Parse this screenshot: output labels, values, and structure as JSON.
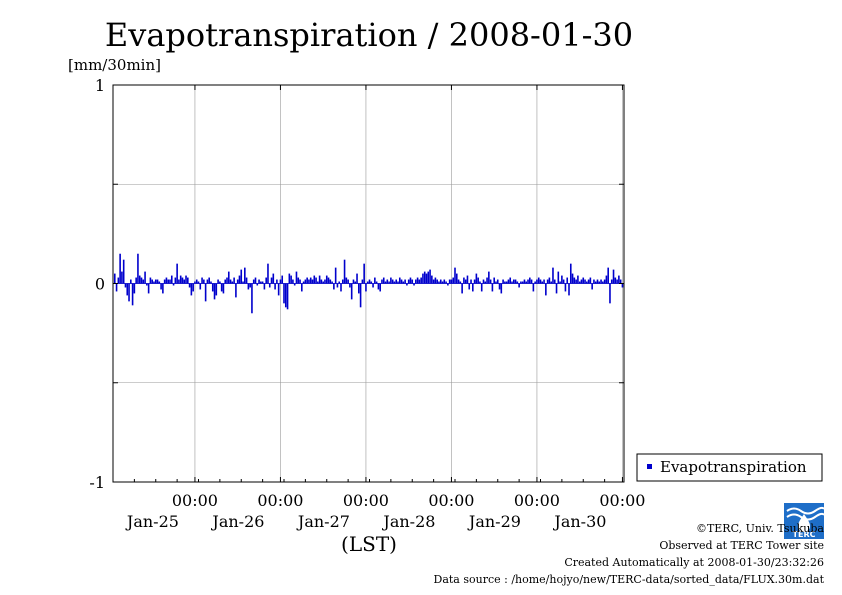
{
  "chart_data": {
    "type": "bar",
    "title": "Evapotranspiration / 2008-01-30",
    "ylabel": "[mm/30min]",
    "xlabel": "(LST)",
    "ylim": [
      -1,
      1
    ],
    "yticks": [
      "1",
      "0",
      "-1"
    ],
    "xticks": [
      {
        "time": "00:00",
        "date": "Jan-25"
      },
      {
        "time": "00:00",
        "date": "Jan-26"
      },
      {
        "time": "00:00",
        "date": "Jan-27"
      },
      {
        "time": "00:00",
        "date": "Jan-28"
      },
      {
        "time": "00:00",
        "date": "Jan-29"
      },
      {
        "time": "00:00",
        "date": "Jan-30"
      }
    ],
    "grid": true,
    "legend": {
      "entries": [
        "Evapotranspiration"
      ],
      "placement": "right"
    },
    "color": "#0000cc",
    "series": [
      {
        "name": "Evapotranspiration",
        "x_start": "2008-01-24 01:30",
        "x_step_minutes": 30,
        "values": [
          0.05,
          -0.04,
          0.03,
          0.15,
          0.06,
          0.12,
          -0.02,
          -0.06,
          -0.09,
          0.02,
          -0.11,
          -0.05,
          0.03,
          0.15,
          0.04,
          0.03,
          0.02,
          0.06,
          -0.01,
          -0.05,
          0.03,
          0.02,
          0.01,
          0.02,
          0.02,
          0.01,
          -0.03,
          -0.05,
          0.02,
          0.03,
          0.02,
          0.02,
          0.04,
          -0.01,
          0.03,
          0.1,
          0.02,
          0.04,
          0.03,
          0.02,
          0.04,
          0.03,
          -0.02,
          -0.06,
          -0.04,
          0.01,
          0.02,
          0.01,
          -0.03,
          0.03,
          0.02,
          -0.09,
          0.02,
          0.03,
          0.01,
          -0.04,
          -0.08,
          -0.06,
          0.02,
          0.01,
          -0.04,
          -0.05,
          0.02,
          0.03,
          0.06,
          0.02,
          0.01,
          0.03,
          -0.07,
          0.02,
          0.04,
          0.07,
          0.01,
          0.08,
          0.03,
          -0.03,
          -0.02,
          -0.15,
          0.02,
          0.03,
          -0.01,
          0.02,
          0.01,
          0.01,
          -0.03,
          0.03,
          0.1,
          -0.02,
          0.03,
          0.05,
          -0.03,
          0.02,
          -0.06,
          0.02,
          0.04,
          -0.1,
          -0.12,
          -0.13,
          0.05,
          0.04,
          0.02,
          -0.01,
          0.06,
          0.03,
          0.02,
          -0.04,
          0.01,
          0.02,
          0.03,
          0.02,
          0.03,
          0.02,
          0.04,
          0.03,
          0.01,
          0.04,
          0.02,
          0.01,
          0.02,
          0.04,
          0.03,
          0.02,
          0.01,
          -0.03,
          0.08,
          -0.02,
          0.01,
          -0.04,
          0.02,
          0.12,
          0.03,
          0.02,
          -0.02,
          -0.08,
          0.02,
          0.01,
          0.05,
          -0.05,
          -0.12,
          0.02,
          0.1,
          -0.04,
          0.01,
          0.02,
          0.01,
          -0.02,
          0.03,
          0.01,
          -0.03,
          -0.04,
          0.02,
          0.03,
          0.01,
          0.02,
          0.01,
          0.03,
          0.02,
          0.01,
          0.02,
          0.01,
          0.03,
          0.02,
          0.01,
          0.02,
          -0.01,
          0.02,
          0.03,
          0.02,
          -0.01,
          0.02,
          0.03,
          0.02,
          0.03,
          0.05,
          0.06,
          0.05,
          0.06,
          0.07,
          0.04,
          0.02,
          0.03,
          0.02,
          0.01,
          0.02,
          0.01,
          0.02,
          0.01,
          -0.01,
          0.02,
          0.02,
          0.03,
          0.08,
          0.05,
          0.02,
          0.01,
          -0.05,
          0.03,
          0.02,
          0.04,
          -0.03,
          0.02,
          -0.04,
          0.02,
          0.05,
          0.03,
          0.01,
          -0.04,
          0.02,
          0.01,
          0.03,
          0.06,
          0.02,
          -0.04,
          0.03,
          0.01,
          0.02,
          -0.03,
          -0.05,
          0.02,
          0.01,
          0.01,
          0.02,
          0.03,
          0.01,
          0.02,
          0.02,
          0.01,
          -0.02,
          0.01,
          0.01,
          0.02,
          0.01,
          0.02,
          0.03,
          0.02,
          -0.04,
          0.01,
          0.02,
          0.03,
          0.02,
          0.01,
          0.02,
          -0.06,
          0.02,
          0.03,
          0.01,
          0.08,
          0.02,
          -0.05,
          0.06,
          0.01,
          0.04,
          0.02,
          -0.04,
          0.03,
          -0.06,
          0.1,
          0.05,
          0.03,
          0.02,
          0.04,
          0.01,
          0.02,
          0.03,
          0.02,
          0.01,
          0.02,
          0.03,
          -0.03,
          0.02,
          0.01,
          0.02,
          0.01,
          0.02,
          0.01,
          0.02,
          0.04,
          0.08,
          -0.1,
          0.02,
          0.07,
          0.03,
          0.02,
          0.04,
          0.02,
          -0.02,
          0.01,
          0.05,
          0.02,
          0.04,
          0.1,
          -0.06,
          0.02,
          -0.05,
          0.04,
          0.02,
          0.03,
          0.05,
          -0.1,
          0.09,
          -0.03
        ]
      }
    ]
  },
  "footer": {
    "copyright": "©TERC, Univ. Tsukuba",
    "observed": "Observed at TERC Tower site",
    "created": "Created Automatically at 2008-01-30/23:32:26",
    "source": "Data source : /home/hojyo/new/TERC-data/sorted_data/FLUX.30m.dat"
  },
  "logo": {
    "text": "TERC"
  }
}
